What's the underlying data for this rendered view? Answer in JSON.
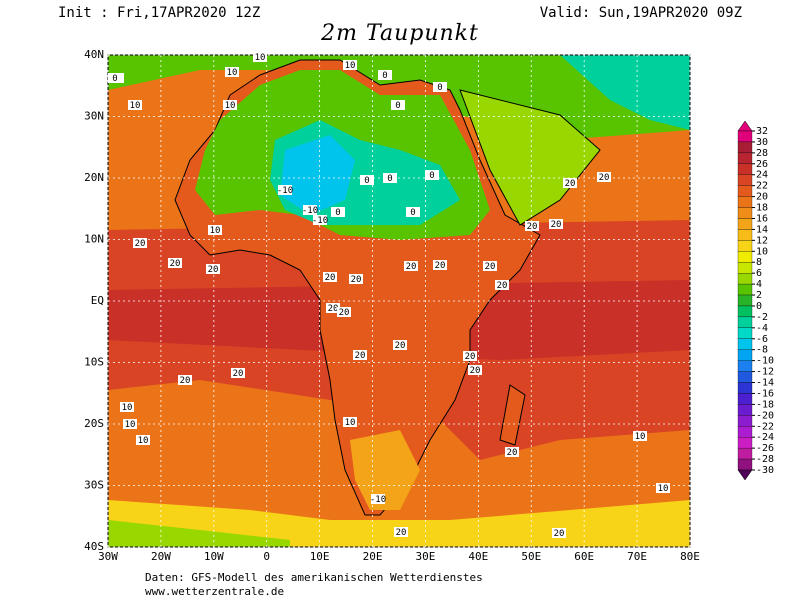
{
  "header": {
    "init": "Init : Fri,17APR2020 12Z",
    "valid": "Valid: Sun,19APR2020 09Z",
    "title": "2m Taupunkt"
  },
  "map": {
    "lon_range": [
      -30,
      80
    ],
    "lat_range": [
      -40,
      40
    ],
    "lat_ticks": [
      {
        "value": 40,
        "label": "40N"
      },
      {
        "value": 30,
        "label": "30N"
      },
      {
        "value": 20,
        "label": "20N"
      },
      {
        "value": 10,
        "label": "10N"
      },
      {
        "value": 0,
        "label": "EQ"
      },
      {
        "value": -10,
        "label": "10S"
      },
      {
        "value": -20,
        "label": "20S"
      },
      {
        "value": -30,
        "label": "30S"
      },
      {
        "value": -40,
        "label": "40S"
      }
    ],
    "lon_ticks": [
      {
        "value": -30,
        "label": "30W"
      },
      {
        "value": -20,
        "label": "20W"
      },
      {
        "value": -10,
        "label": "10W"
      },
      {
        "value": 0,
        "label": "0"
      },
      {
        "value": 10,
        "label": "10E"
      },
      {
        "value": 20,
        "label": "20E"
      },
      {
        "value": 30,
        "label": "30E"
      },
      {
        "value": 40,
        "label": "40E"
      },
      {
        "value": 50,
        "label": "50E"
      },
      {
        "value": 60,
        "label": "60E"
      },
      {
        "value": 70,
        "label": "70E"
      },
      {
        "value": 80,
        "label": "80E"
      }
    ],
    "contour_labels": [
      "10",
      "10",
      "0",
      "10",
      "10",
      "10",
      "0",
      "0",
      "10",
      "-10",
      "-10",
      "-10",
      "0",
      "0",
      "0",
      "0",
      "0",
      "0",
      "10",
      "20",
      "20",
      "20",
      "20",
      "20",
      "20",
      "20",
      "20",
      "20",
      "20",
      "20",
      "20",
      "20",
      "20",
      "20",
      "20",
      "20",
      "20",
      "20",
      "20",
      "20",
      "10",
      "10",
      "10",
      "10",
      "-10",
      "10",
      "20",
      "20",
      "10",
      "20"
    ]
  },
  "colorbar": {
    "ticks": [
      32,
      30,
      28,
      26,
      24,
      22,
      20,
      18,
      16,
      14,
      12,
      10,
      8,
      6,
      4,
      2,
      0,
      -2,
      -4,
      -6,
      -8,
      -10,
      -12,
      -14,
      -16,
      -18,
      -20,
      -22,
      -24,
      -26,
      -28,
      -30
    ],
    "colors": [
      "#e0007a",
      "#a81c34",
      "#b82430",
      "#c83028",
      "#d84424",
      "#e45a1c",
      "#ec7418",
      "#f08c18",
      "#f4a418",
      "#f8bc18",
      "#f8d418",
      "#f0ec00",
      "#c8e600",
      "#98d800",
      "#58c400",
      "#28b428",
      "#00c060",
      "#00d09c",
      "#00d8c8",
      "#00c4ec",
      "#00a4f0",
      "#1c80f0",
      "#2058e0",
      "#2c34d4",
      "#4c20d0",
      "#6c1cd0",
      "#8c1cd0",
      "#ac1cd0",
      "#cc1cc4",
      "#c01ca0",
      "#901080",
      "#500058"
    ]
  },
  "footer": {
    "line1": "Daten: GFS-Modell des amerikanischen Wetterdienstes",
    "line2": "www.wetterzentrale.de"
  }
}
